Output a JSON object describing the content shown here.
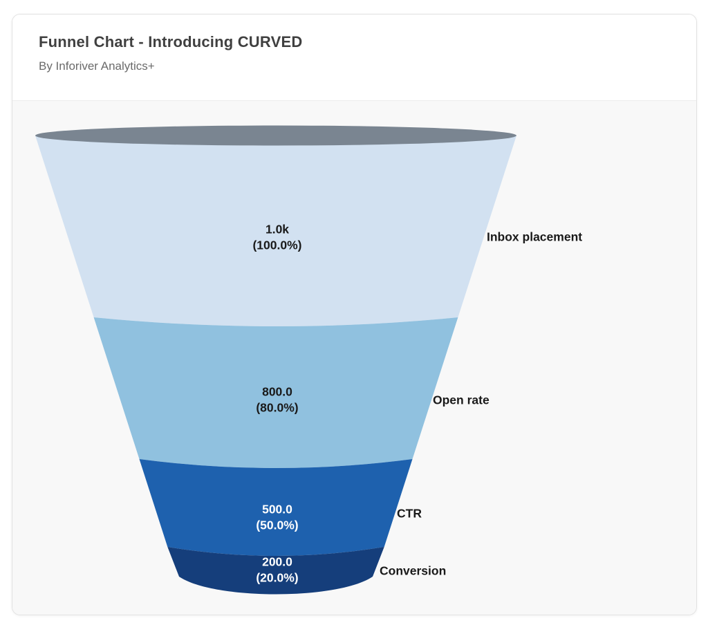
{
  "header": {
    "title": "Funnel Chart - Introducing CURVED",
    "subtitle": "By Inforiver Analytics+"
  },
  "chart_data": {
    "type": "funnel",
    "title": "Funnel Chart - Introducing CURVED",
    "subtitle": "By Inforiver Analytics+",
    "orientation": "top-to-bottom",
    "categories": [
      "Inbox placement",
      "Open rate",
      "CTR",
      "Conversion"
    ],
    "values": [
      1000,
      800,
      500,
      200
    ],
    "percentages": [
      100.0,
      80.0,
      50.0,
      20.0
    ],
    "value_labels": [
      "1.0k",
      "800.0",
      "500.0",
      "200.0"
    ],
    "percent_labels": [
      "(100.0%)",
      "(80.0%)",
      "(50.0%)",
      "(20.0%)"
    ],
    "segment_colors": [
      "#D2E1F1",
      "#90C1DF",
      "#1E61AE",
      "#153E7B"
    ],
    "value_label_colors": [
      "#1A1A1A",
      "#1A1A1A",
      "#FFFFFF",
      "#FFFFFF"
    ],
    "category_label_color": "#1A1A1A",
    "top_ellipse_color": "#7A8591",
    "background_color": "#F8F8F8"
  }
}
